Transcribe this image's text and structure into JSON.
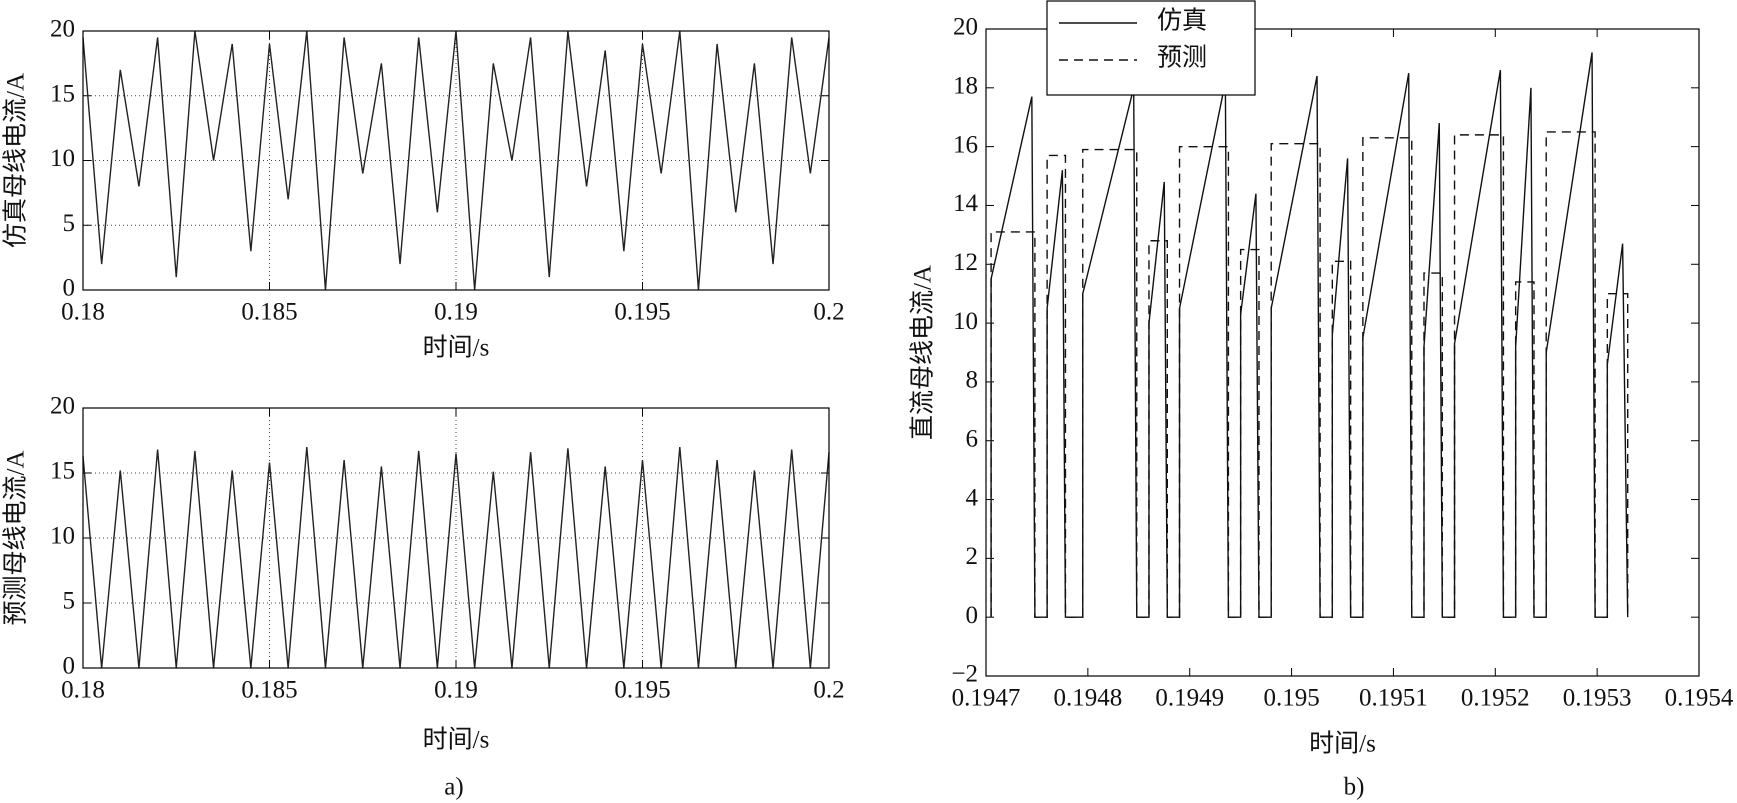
{
  "chart_data": [
    {
      "type": "line",
      "ylabel": "仿真母线电流/A",
      "xlabel": "时间/s",
      "xlim": [
        0.18,
        0.2
      ],
      "xticks": [
        0.18,
        0.185,
        0.19,
        0.195,
        0.2
      ],
      "ylim": [
        0,
        20
      ],
      "yticks": [
        0,
        5,
        10,
        15,
        20
      ],
      "grid": true,
      "series": [
        {
          "color": "#222222",
          "line_style": "solid",
          "x": [
            0.18,
            0.1805,
            0.181,
            0.1815,
            0.182,
            0.1825,
            0.183,
            0.1835,
            0.184,
            0.1845,
            0.185,
            0.1855,
            0.186,
            0.1865,
            0.187,
            0.1875,
            0.188,
            0.1885,
            0.189,
            0.1895,
            0.19,
            0.1905,
            0.191,
            0.1915,
            0.192,
            0.1925,
            0.193,
            0.1935,
            0.194,
            0.1945,
            0.195,
            0.1955,
            0.196,
            0.1965,
            0.197,
            0.1975,
            0.198,
            0.1985,
            0.199,
            0.1995,
            0.2
          ],
          "values": [
            19.5,
            2,
            17,
            8,
            19.5,
            1,
            20,
            10,
            19,
            3,
            19,
            7,
            20,
            0,
            19.5,
            9,
            17.5,
            2,
            19.5,
            6,
            20,
            0,
            17.5,
            10,
            19.5,
            1,
            20,
            8,
            18.5,
            3,
            19,
            9,
            20,
            0,
            19,
            6,
            17.5,
            2,
            19.5,
            9,
            19.5
          ]
        }
      ]
    },
    {
      "type": "line",
      "ylabel": "预测母线电流/A",
      "xlabel": "时间/s",
      "caption": "a)",
      "xlim": [
        0.18,
        0.2
      ],
      "xticks": [
        0.18,
        0.185,
        0.19,
        0.195,
        0.2
      ],
      "ylim": [
        0,
        20
      ],
      "yticks": [
        0,
        5,
        10,
        15,
        20
      ],
      "grid": true,
      "series": [
        {
          "color": "#222222",
          "line_style": "solid",
          "x": [
            0.18,
            0.1805,
            0.181,
            0.1815,
            0.182,
            0.1825,
            0.183,
            0.1835,
            0.184,
            0.1845,
            0.185,
            0.1855,
            0.186,
            0.1865,
            0.187,
            0.1875,
            0.188,
            0.1885,
            0.189,
            0.1895,
            0.19,
            0.1905,
            0.191,
            0.1915,
            0.192,
            0.1925,
            0.193,
            0.1935,
            0.194,
            0.1945,
            0.195,
            0.1955,
            0.196,
            0.1965,
            0.197,
            0.1975,
            0.198,
            0.1985,
            0.199,
            0.1995,
            0.2
          ],
          "values": [
            16.3,
            0,
            15.2,
            0,
            16.8,
            0,
            16.7,
            0,
            15.2,
            0,
            15.8,
            0,
            17,
            0,
            16,
            0,
            15.5,
            0,
            16.7,
            0,
            16.5,
            0,
            15.1,
            0,
            16.6,
            0,
            16.9,
            0,
            15.5,
            0,
            16,
            0,
            17,
            0,
            16,
            0,
            15.2,
            0,
            16.8,
            0,
            16.6
          ]
        }
      ]
    },
    {
      "type": "line",
      "ylabel": "直流母线电流/A",
      "xlabel": "时间/s",
      "caption": "b)",
      "xlim": [
        0.1947,
        0.1954
      ],
      "xticks": [
        0.1947,
        0.1948,
        0.1949,
        0.195,
        0.1951,
        0.1952,
        0.1953,
        0.1954
      ],
      "ylim": [
        -2,
        20
      ],
      "yticks": [
        {
          "value": -2,
          "label": "−2"
        },
        0,
        2,
        4,
        6,
        8,
        10,
        12,
        14,
        16,
        18,
        20
      ],
      "grid": false,
      "legend": "upper left",
      "series": [
        {
          "name": "仿真",
          "color": "#111111",
          "line_style": "solid",
          "x": [
            0.194705,
            0.194705,
            0.194745,
            0.194748,
            0.19476,
            0.19476,
            0.194775,
            0.194778,
            0.194795,
            0.194795,
            0.194845,
            0.194848,
            0.19486,
            0.19486,
            0.194875,
            0.194878,
            0.19489,
            0.19489,
            0.194935,
            0.194938,
            0.19495,
            0.19495,
            0.194965,
            0.194968,
            0.19498,
            0.19498,
            0.195025,
            0.195028,
            0.19504,
            0.19504,
            0.195055,
            0.195058,
            0.19507,
            0.19507,
            0.195115,
            0.195118,
            0.19513,
            0.19513,
            0.195145,
            0.195148,
            0.19516,
            0.19516,
            0.195205,
            0.195208,
            0.19522,
            0.19522,
            0.195235,
            0.195238,
            0.19525,
            0.19525,
            0.195295,
            0.195298,
            0.19531,
            0.19531,
            0.195325,
            0.19533
          ],
          "values": [
            0,
            11.5,
            17.7,
            0,
            0,
            10.5,
            15.2,
            0,
            0,
            11,
            18,
            0,
            0,
            10,
            14.8,
            0,
            0,
            10.5,
            18.2,
            0,
            0,
            10.3,
            14.4,
            0,
            0,
            10.5,
            18.4,
            0,
            0,
            9.6,
            15.6,
            0,
            0,
            9.5,
            18.5,
            0,
            0,
            9.2,
            16.8,
            0,
            0,
            9.3,
            18.6,
            0,
            0,
            9.2,
            18,
            0,
            0,
            9,
            19.2,
            0,
            0,
            8.6,
            12.7,
            0
          ]
        },
        {
          "name": "预测",
          "color": "#111111",
          "line_style": "dashed",
          "x": [
            0.194705,
            0.194705,
            0.194748,
            0.194748,
            0.19476,
            0.19476,
            0.194778,
            0.194778,
            0.194795,
            0.194795,
            0.194848,
            0.194848,
            0.19486,
            0.19486,
            0.194878,
            0.194878,
            0.19489,
            0.19489,
            0.194938,
            0.194938,
            0.19495,
            0.19495,
            0.194968,
            0.194968,
            0.19498,
            0.19498,
            0.195028,
            0.195028,
            0.19504,
            0.19504,
            0.195058,
            0.195058,
            0.19507,
            0.19507,
            0.195118,
            0.195118,
            0.19513,
            0.19513,
            0.195148,
            0.195148,
            0.19516,
            0.19516,
            0.195208,
            0.195208,
            0.19522,
            0.19522,
            0.195238,
            0.195238,
            0.19525,
            0.19525,
            0.195298,
            0.195298,
            0.19531,
            0.19531,
            0.19533,
            0.19533
          ],
          "values": [
            0,
            13.1,
            13.1,
            0,
            0,
            15.7,
            15.7,
            0,
            0,
            15.9,
            15.9,
            0,
            0,
            12.8,
            12.8,
            0,
            0,
            16,
            16,
            0,
            0,
            12.5,
            12.5,
            0,
            0,
            16.1,
            16.1,
            0,
            0,
            12.1,
            12.1,
            0,
            0,
            16.3,
            16.3,
            0,
            0,
            11.7,
            11.7,
            0,
            0,
            16.4,
            16.4,
            0,
            0,
            11.4,
            11.4,
            0,
            0,
            16.5,
            16.5,
            0,
            0,
            11,
            11,
            0
          ]
        }
      ]
    }
  ]
}
